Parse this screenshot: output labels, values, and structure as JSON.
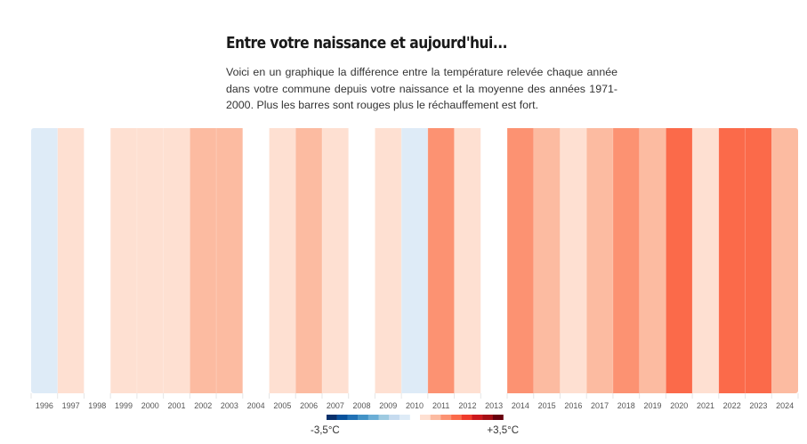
{
  "header": {
    "title": "Entre votre naissance et aujourd'hui...",
    "description": "Voici en un graphique la différence entre la température relevée chaque année dans votre commune depuis votre naissance et la moyenne des années 1971-2000. Plus les barres sont rouges plus le réchauffement est fort."
  },
  "chart_data": {
    "type": "heatmap",
    "title": "Entre votre naissance et aujourd'hui...",
    "xlabel": "",
    "ylabel": "",
    "categories": [
      "1996",
      "1997",
      "1998",
      "1999",
      "2000",
      "2001",
      "2002",
      "2003",
      "2004",
      "2005",
      "2006",
      "2007",
      "2008",
      "2009",
      "2010",
      "2011",
      "2012",
      "2013",
      "2014",
      "2015",
      "2016",
      "2017",
      "2018",
      "2019",
      "2020",
      "2021",
      "2022",
      "2023",
      "2024"
    ],
    "color_level": [
      -1,
      1,
      0,
      1,
      1,
      1,
      2,
      2,
      0,
      1,
      2,
      1,
      0,
      1,
      -1,
      3,
      1,
      0,
      3,
      2,
      1,
      2,
      3,
      2,
      4,
      1,
      4,
      4,
      2
    ],
    "color_level_note": "discrete anomaly bins: 0 = neutral, positive = warmer (red), negative = cooler (blue)",
    "legend": {
      "min_label": "-3,5°C",
      "max_label": "+3,5°C",
      "range": [
        -3.5,
        3.5
      ],
      "blue_scale": [
        "#08306b",
        "#08519c",
        "#2171b5",
        "#4292c6",
        "#6baed6",
        "#9ecae1",
        "#c6dbef",
        "#deebf7"
      ],
      "red_scale": [
        "#fee0d2",
        "#fcbba1",
        "#fc9272",
        "#fb6a4a",
        "#ef3b2c",
        "#cb181d",
        "#a50f15",
        "#67000d"
      ]
    },
    "neutral_color": "#ffffff",
    "grid": false
  }
}
